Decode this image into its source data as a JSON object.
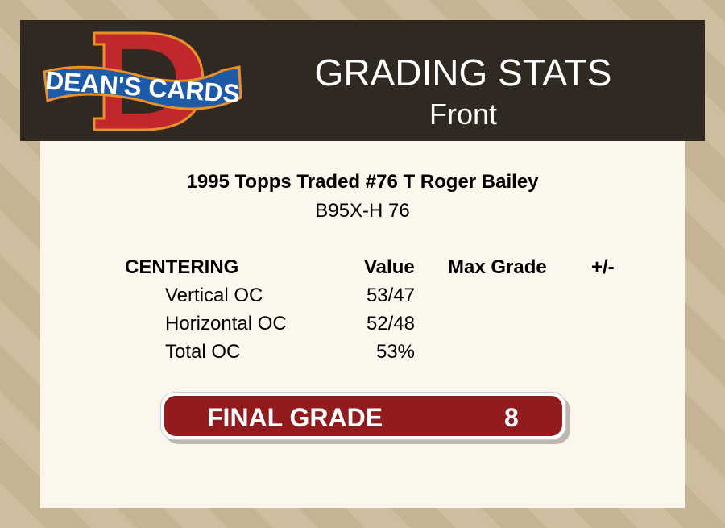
{
  "header": {
    "logo_text": "DEAN'S CARDS",
    "title": "GRADING STATS",
    "subtitle": "Front"
  },
  "card": {
    "name": "1995 Topps Traded #76 T Roger Bailey",
    "code": "B95X-H 76"
  },
  "table": {
    "headers": [
      "CENTERING",
      "Value",
      "Max Grade",
      "+/-"
    ],
    "rows": [
      {
        "label": "Vertical OC",
        "value": "53/47"
      },
      {
        "label": "Horizontal OC",
        "value": "52/48"
      },
      {
        "label": "Total OC",
        "value": "53%"
      }
    ]
  },
  "final": {
    "label": "FINAL GRADE",
    "value": "8"
  },
  "colors": {
    "header": "#302921",
    "panel": "#fbf7ec",
    "grade": "#921b1e"
  }
}
